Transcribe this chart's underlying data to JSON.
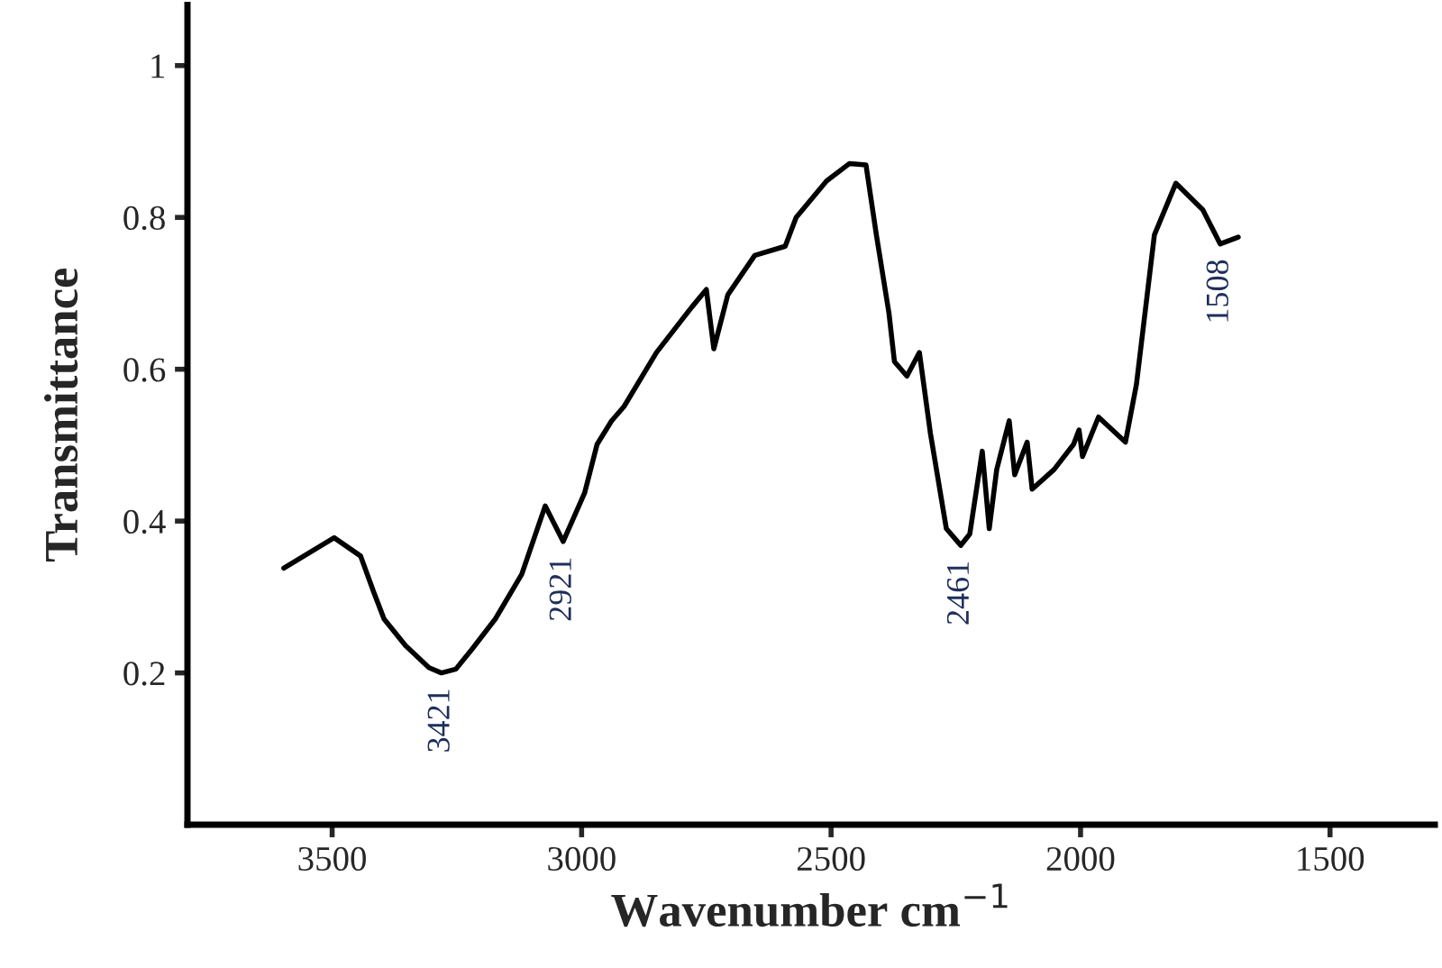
{
  "chart_data": {
    "type": "line",
    "xlabel": "Wavenumber cm$^{−1}$",
    "ylabel": "Transmittance",
    "xlim": [
      3790,
      1290
    ],
    "xticks": [
      3500,
      3000,
      2500,
      2000,
      1500
    ],
    "ylim": [
      0,
      1.08
    ],
    "yticks": [
      0.2,
      0.4,
      0.6,
      0.8,
      1
    ],
    "grid": false,
    "legend": false,
    "marker": "none",
    "line_style": "solid",
    "series": [
      {
        "color": "#000000",
        "x": [
          3597,
          3496,
          3443,
          3417,
          3396,
          3353,
          3306,
          3281,
          3252,
          3220,
          3173,
          3120,
          3073,
          3037,
          2994,
          2969,
          2940,
          2915,
          2850,
          2779,
          2750,
          2735,
          2707,
          2653,
          2592,
          2570,
          2509,
          2463,
          2430,
          2409,
          2384,
          2373,
          2348,
          2323,
          2301,
          2269,
          2240,
          2222,
          2197,
          2183,
          2168,
          2143,
          2132,
          2107,
          2097,
          2053,
          2014,
          2003,
          1996,
          1964,
          1910,
          1888,
          1852,
          1809,
          1755,
          1720,
          1684
        ],
        "values": [
          0.338,
          0.378,
          0.354,
          0.307,
          0.271,
          0.236,
          0.207,
          0.2,
          0.205,
          0.231,
          0.271,
          0.33,
          0.42,
          0.373,
          0.437,
          0.501,
          0.532,
          0.551,
          0.622,
          0.682,
          0.705,
          0.627,
          0.698,
          0.75,
          0.762,
          0.8,
          0.848,
          0.871,
          0.869,
          0.776,
          0.674,
          0.61,
          0.591,
          0.622,
          0.516,
          0.39,
          0.368,
          0.383,
          0.492,
          0.39,
          0.468,
          0.532,
          0.461,
          0.504,
          0.442,
          0.468,
          0.501,
          0.52,
          0.485,
          0.537,
          0.504,
          0.58,
          0.777,
          0.845,
          0.81,
          0.765,
          0.774
        ]
      }
    ],
    "annotations": [
      {
        "text": "3421",
        "x": 3281,
        "y": 0.2
      },
      {
        "text": "2921",
        "x": 3037,
        "y": 0.373
      },
      {
        "text": "2461",
        "x": 2240,
        "y": 0.368
      },
      {
        "text": "1508",
        "x": 1720,
        "y": 0.765
      }
    ]
  }
}
